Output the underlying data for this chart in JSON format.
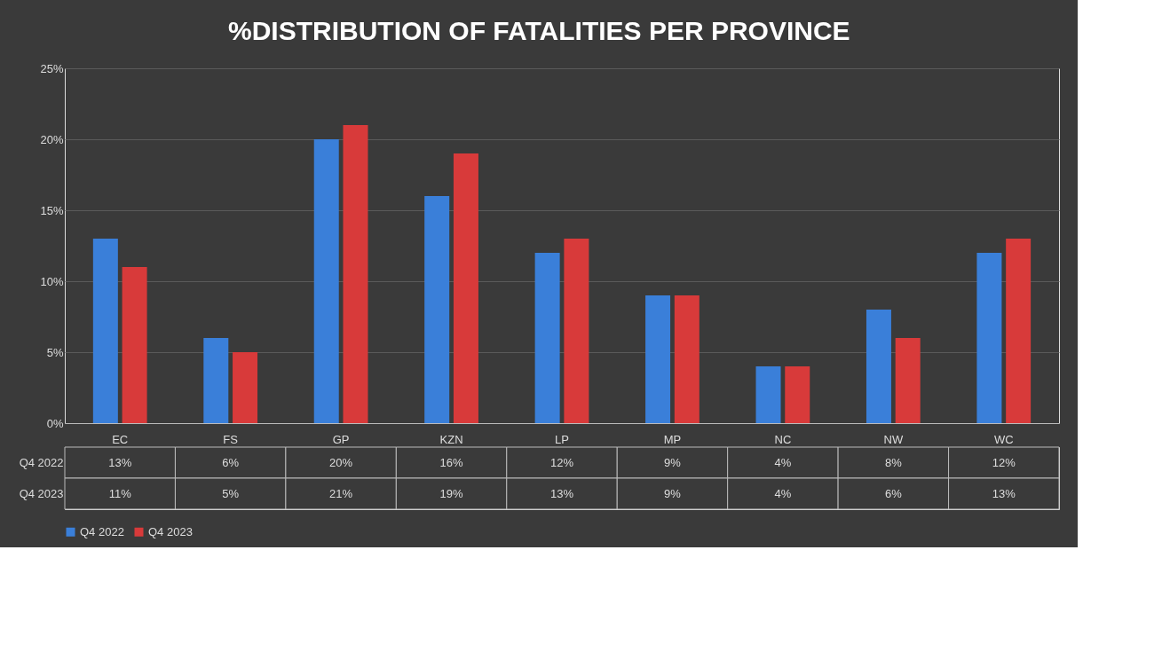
{
  "chart_data": {
    "type": "bar",
    "title": "%DISTRIBUTION OF FATALITIES PER PROVINCE",
    "categories": [
      "EC",
      "FS",
      "GP",
      "KZN",
      "LP",
      "MP",
      "NC",
      "NW",
      "WC"
    ],
    "series": [
      {
        "name": "Q4 2022",
        "color": "#3a7fd9",
        "values": [
          13,
          6,
          20,
          16,
          12,
          9,
          4,
          8,
          12
        ],
        "value_labels": [
          "13%",
          "6%",
          "20%",
          "16%",
          "12%",
          "9%",
          "4%",
          "8%",
          "12%"
        ]
      },
      {
        "name": "Q4 2023",
        "color": "#d83a3a",
        "values": [
          11,
          5,
          21,
          19,
          13,
          9,
          4,
          6,
          13
        ],
        "value_labels": [
          "11%",
          "5%",
          "21%",
          "19%",
          "13%",
          "9%",
          "4%",
          "6%",
          "13%"
        ]
      }
    ],
    "ylim": [
      0,
      25
    ],
    "yticks": [
      {
        "value": 0,
        "label": "0%"
      },
      {
        "value": 5,
        "label": "5%"
      },
      {
        "value": 10,
        "label": "10%"
      },
      {
        "value": 15,
        "label": "15%"
      },
      {
        "value": 20,
        "label": "20%"
      },
      {
        "value": 25,
        "label": "25%"
      }
    ],
    "grid": "y",
    "legend": "bottom"
  }
}
